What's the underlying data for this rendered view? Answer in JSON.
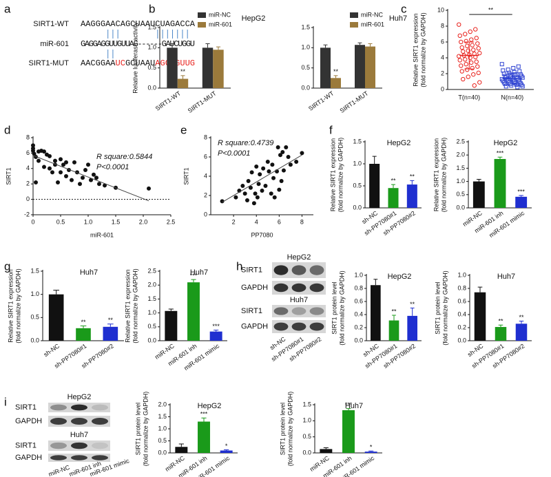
{
  "panel_labels": [
    "a",
    "b",
    "c",
    "d",
    "e",
    "f",
    "g",
    "h",
    "i"
  ],
  "sequence": {
    "rows": [
      {
        "label": "SIRT1-WT",
        "segments": [
          {
            "text": "AAGGGAACAGCUAAUCUAGACCA"
          }
        ]
      },
      {
        "label": "miR-601",
        "segments": [
          {
            "text": "GAGGAGGUUGUUAG------GAUCUGGU"
          }
        ]
      },
      {
        "label": "SIRT1-MUT",
        "segments": [
          {
            "text": "AACGGAA"
          },
          {
            "text": "UC",
            "color": "#e8211c"
          },
          {
            "text": "GCUAAU"
          },
          {
            "text": "AGCUGUUG",
            "color": "#e8211c"
          }
        ]
      }
    ]
  },
  "blots": [
    {
      "title": "HepG2",
      "rows": [
        "SIRT1",
        "GAPDH"
      ]
    },
    {
      "title": "Huh7",
      "rows": [
        "SIRT1",
        "GAPDH"
      ]
    },
    {
      "title": "HepG2",
      "rows": [
        "SIRT1",
        "GAPDH"
      ]
    },
    {
      "title": "Huh7",
      "rows": [
        "SIRT1",
        "GAPDH"
      ]
    }
  ],
  "chart_data": [
    {
      "type": "grouped-bar",
      "title": "HepG2",
      "ylabel": [
        "Relative luciferase activity"
      ],
      "categories": [
        "SIRT1-WT",
        "SIRT1-MUT"
      ],
      "series": [
        {
          "name": "miR-NC",
          "color": "#333333",
          "values": [
            1.0,
            1.0
          ],
          "errors": [
            0.1,
            0.1
          ],
          "sig": [
            null,
            null
          ]
        },
        {
          "name": "miR-601",
          "color": "#9b7a3b",
          "values": [
            0.23,
            0.95
          ],
          "errors": [
            0.08,
            0.07
          ],
          "sig": [
            "**",
            null
          ]
        }
      ],
      "ylim": [
        0,
        1.5
      ],
      "yticks": [
        {
          "value": 0,
          "label": "0.0"
        },
        0.5,
        {
          "value": 1,
          "label": "1.0"
        },
        1.5
      ]
    },
    {
      "type": "grouped-bar",
      "title": "Huh7",
      "categories": [
        "SIRT1-WT",
        "SIRT1-MUT"
      ],
      "series": [
        {
          "name": "miR-NC",
          "color": "#333333",
          "values": [
            1.0,
            1.07
          ],
          "errors": [
            0.07,
            0.05
          ],
          "sig": [
            null,
            null
          ]
        },
        {
          "name": "miR-601",
          "color": "#9b7a3b",
          "values": [
            0.25,
            1.03
          ],
          "errors": [
            0.06,
            0.07
          ],
          "sig": [
            "**",
            null
          ]
        }
      ],
      "ylim": [
        0,
        1.5
      ],
      "yticks": [
        {
          "value": 0,
          "label": "0.0"
        },
        0.5,
        {
          "value": 1,
          "label": "1.0"
        },
        1.5
      ]
    },
    {
      "type": "strip",
      "ylabel": [
        "Relative SIRT1 expression",
        "(fold normalize by GAPDH)"
      ],
      "categories": [
        "T(n=40)",
        "N(n=40)"
      ],
      "colors": [
        "#e8211c",
        "#2a3fd1"
      ],
      "markers": [
        "circle",
        "square"
      ],
      "values": [
        [
          8.2,
          7.6,
          7.3,
          7.0,
          6.8,
          6.5,
          6.3,
          6.1,
          6.0,
          5.8,
          5.6,
          5.5,
          5.3,
          5.2,
          5.0,
          4.9,
          4.8,
          4.6,
          4.5,
          4.4,
          4.3,
          4.2,
          4.1,
          4.0,
          3.8,
          3.7,
          3.5,
          3.4,
          3.2,
          3.0,
          2.9,
          2.7,
          2.5,
          2.3,
          2.1,
          1.9,
          1.6,
          1.3,
          0.9,
          0.5
        ],
        [
          3.2,
          2.9,
          2.7,
          2.5,
          2.4,
          2.3,
          2.2,
          2.1,
          2.0,
          1.9,
          1.9,
          1.8,
          1.7,
          1.7,
          1.6,
          1.6,
          1.5,
          1.5,
          1.4,
          1.4,
          1.3,
          1.3,
          1.2,
          1.2,
          1.1,
          1.1,
          1.0,
          1.0,
          0.9,
          0.9,
          0.8,
          0.8,
          0.7,
          0.7,
          0.6,
          0.6,
          0.5,
          0.4,
          0.4,
          0.3
        ]
      ],
      "mean": [
        4.3,
        1.4
      ],
      "sd": [
        1.7,
        0.7
      ],
      "sig": "**",
      "ylim": [
        0,
        10
      ],
      "yticks": [
        0,
        2,
        4,
        6,
        8,
        10
      ]
    },
    {
      "type": "scatter",
      "xlabel": "miR-601",
      "ylabel": [
        "SIRT1"
      ],
      "annotations": [
        "R square:0.5844",
        "P<0.0001"
      ],
      "x": [
        0,
        0,
        0,
        0.02,
        0.05,
        0.05,
        0.1,
        0.1,
        0.15,
        0.2,
        0.2,
        0.25,
        0.3,
        0.3,
        0.35,
        0.4,
        0.4,
        0.45,
        0.5,
        0.5,
        0.55,
        0.6,
        0.6,
        0.65,
        0.7,
        0.75,
        0.8,
        0.85,
        0.9,
        0.95,
        1.0,
        1.05,
        1.1,
        1.15,
        1.2,
        1.3,
        1.5,
        2.1
      ],
      "y": [
        7.0,
        6.6,
        6.3,
        5.9,
        5.5,
        2.2,
        6.2,
        5.0,
        6.3,
        6.2,
        4.2,
        5.8,
        4.0,
        5.6,
        3.5,
        5.0,
        4.5,
        2.2,
        5.2,
        3.5,
        4.5,
        3.0,
        4.8,
        3.8,
        2.5,
        4.8,
        3.5,
        2.0,
        2.8,
        3.8,
        4.5,
        2.5,
        3.2,
        2.8,
        2.0,
        1.8,
        1.5,
        1.4
      ],
      "fit": {
        "x": [
          0,
          2.1
        ],
        "y": [
          5.7,
          -0.2
        ]
      },
      "reference_y": 0,
      "xlim": [
        0,
        2.5
      ],
      "xticks": [
        0,
        0.5,
        {
          "value": 1,
          "label": "1.0"
        },
        1.5,
        {
          "value": 2,
          "label": "2.0"
        },
        2.5
      ],
      "ylim": [
        -2,
        8
      ],
      "yticks": [
        -2,
        0,
        2,
        4,
        6,
        8
      ]
    },
    {
      "type": "scatter",
      "xlabel": "PP7080",
      "ylabel": [
        "SIRT1"
      ],
      "annotations": [
        "R square:0.4739",
        "P<0.0001"
      ],
      "x": [
        1,
        2.2,
        2.5,
        2.8,
        3,
        3.2,
        3.3,
        3.5,
        3.6,
        3.8,
        3.9,
        4,
        4.1,
        4.2,
        4.3,
        4.5,
        4.6,
        4.8,
        5,
        5.1,
        5.3,
        5.4,
        5.5,
        5.6,
        5.8,
        5.9,
        6,
        6.1,
        6.2,
        6.3,
        6.4,
        6.6,
        6.8,
        7,
        7.5,
        8
      ],
      "y": [
        1.4,
        1.8,
        2.5,
        3,
        2.2,
        1.5,
        3.5,
        2.8,
        4.4,
        1.2,
        2.2,
        5,
        1.8,
        3.2,
        4.2,
        2.5,
        4.8,
        3,
        5.5,
        4.5,
        2.2,
        5.2,
        3.8,
        1.8,
        4.5,
        7,
        2.6,
        6.2,
        3.5,
        6.5,
        4.6,
        7,
        6,
        5.2,
        5.5,
        6.4
      ],
      "fit": {
        "x": [
          1,
          8
        ],
        "y": [
          1.3,
          6.2
        ]
      },
      "xlim": [
        0,
        9
      ],
      "xticks": [
        2,
        4,
        6,
        8
      ],
      "ylim": [
        0,
        8
      ],
      "yticks": [
        0,
        2,
        4,
        6,
        8
      ]
    },
    {
      "type": "bar",
      "title": "HepG2",
      "ylabel": [
        "Relative SIRT1 expression",
        "(fold normalize by GAPDH)"
      ],
      "categories": [
        "sh-NC",
        "sh-PP7080#1",
        "sh-PP7080#2"
      ],
      "colors": [
        "#111111",
        "#1a9a1a",
        "#1f2fd0"
      ],
      "values": [
        1.0,
        0.45,
        0.53
      ],
      "errors": [
        0.17,
        0.08,
        0.09
      ],
      "sig": [
        null,
        "**",
        "**"
      ],
      "ylim": [
        0,
        1.5
      ],
      "yticks": [
        {
          "value": 0,
          "label": "0.0"
        },
        0.5,
        {
          "value": 1,
          "label": "1.0"
        },
        1.5
      ]
    },
    {
      "type": "bar",
      "title": "HepG2",
      "ylabel": [
        "Relative SIRT1 expression",
        "(fold normalize by GAPDH)"
      ],
      "categories": [
        "miR-NC",
        "miR-601 inh",
        "miR-601 mimic"
      ],
      "colors": [
        "#111111",
        "#1a9a1a",
        "#1f2fd0"
      ],
      "values": [
        1.0,
        1.85,
        0.42
      ],
      "errors": [
        0.08,
        0.07,
        0.05
      ],
      "sig": [
        null,
        "***",
        "***"
      ],
      "ylim": [
        0,
        2.5
      ],
      "yticks": [
        {
          "value": 0,
          "label": "0.0"
        },
        0.5,
        {
          "value": 1,
          "label": "1.0"
        },
        1.5,
        {
          "value": 2,
          "label": "2.0"
        },
        2.5
      ]
    },
    {
      "type": "bar",
      "title": "Huh7",
      "ylabel": [
        "Relative SIRT1 expression",
        "(fold normalize by GAPDH)"
      ],
      "categories": [
        "sh-NC",
        "sh-PP7080#1",
        "sh-PP7080#2"
      ],
      "colors": [
        "#111111",
        "#1a9a1a",
        "#1f2fd0"
      ],
      "values": [
        1.0,
        0.27,
        0.3
      ],
      "errors": [
        0.09,
        0.05,
        0.06
      ],
      "sig": [
        null,
        "**",
        "**"
      ],
      "ylim": [
        0,
        1.5
      ],
      "yticks": [
        {
          "value": 0,
          "label": "0.0"
        },
        0.5,
        {
          "value": 1,
          "label": "1.0"
        },
        1.5
      ]
    },
    {
      "type": "bar",
      "title": "Huh7",
      "ylabel": [
        "Relative SIRT1 expression",
        "(fold normalize by GAPDH)"
      ],
      "categories": [
        "miR-NC",
        "miR-601 inh",
        "miR-601 mimic"
      ],
      "colors": [
        "#111111",
        "#1a9a1a",
        "#1f2fd0"
      ],
      "values": [
        1.07,
        2.1,
        0.33
      ],
      "errors": [
        0.07,
        0.1,
        0.05
      ],
      "sig": [
        null,
        "***",
        "***"
      ],
      "ylim": [
        0,
        2.5
      ],
      "yticks": [
        {
          "value": 0,
          "label": "0.0"
        },
        0.5,
        {
          "value": 1,
          "label": "1.0"
        },
        1.5,
        {
          "value": 2,
          "label": "2.0"
        },
        2.5
      ]
    },
    {
      "type": "bar",
      "title": "HepG2",
      "ylabel": [
        "SIRT1 protein level",
        "(fold normalize by GAPDH)"
      ],
      "categories": [
        "sh-NC",
        "sh-PP7080#1",
        "sh-PP7080#2"
      ],
      "colors": [
        "#111111",
        "#1a9a1a",
        "#1f2fd0"
      ],
      "values": [
        0.85,
        0.31,
        0.38
      ],
      "errors": [
        0.09,
        0.08,
        0.12
      ],
      "sig": [
        null,
        "**",
        "**"
      ],
      "ylim": [
        0,
        1.0
      ],
      "yticks": [
        {
          "value": 0,
          "label": "0.0"
        },
        0.2,
        0.4,
        0.6,
        0.8,
        {
          "value": 1,
          "label": "1.0"
        }
      ]
    },
    {
      "type": "bar",
      "title": "Huh7",
      "ylabel": [
        "SIRT1 protein level",
        "(fold normalize by GAPDH)"
      ],
      "categories": [
        "sh-NC",
        "sh-PP7080#1",
        "sh-PP7080#2"
      ],
      "colors": [
        "#111111",
        "#1a9a1a",
        "#1f2fd0"
      ],
      "values": [
        0.74,
        0.21,
        0.26
      ],
      "errors": [
        0.08,
        0.03,
        0.04
      ],
      "sig": [
        null,
        "**",
        "**"
      ],
      "ylim": [
        0,
        1.0
      ],
      "yticks": [
        {
          "value": 0,
          "label": "0.0"
        },
        0.2,
        0.4,
        0.6,
        0.8,
        {
          "value": 1,
          "label": "1.0"
        }
      ]
    },
    {
      "type": "bar",
      "title": "HepG2",
      "ylabel": [
        "SIRT1 protein level",
        "(fold normalize by GAPDH)"
      ],
      "categories": [
        "miR-NC",
        "miR-601 inh",
        "miR-601 mimic"
      ],
      "colors": [
        "#111111",
        "#1a9a1a",
        "#1f2fd0"
      ],
      "values": [
        0.25,
        1.3,
        0.1
      ],
      "errors": [
        0.12,
        0.15,
        0.03
      ],
      "sig": [
        null,
        "***",
        "*"
      ],
      "ylim": [
        0,
        2.0
      ],
      "yticks": [
        {
          "value": 0,
          "label": "0.0"
        },
        0.5,
        {
          "value": 1,
          "label": "1.0"
        },
        1.5,
        {
          "value": 2,
          "label": "2.0"
        }
      ]
    },
    {
      "type": "bar",
      "title": "Huh7",
      "ylabel": [
        "SIRT1 protein level",
        "(fold normalize by GAPDH)"
      ],
      "categories": [
        "miR-NC",
        "miR-601 inh",
        "miR-601 mimic"
      ],
      "colors": [
        "#111111",
        "#1a9a1a",
        "#1f2fd0"
      ],
      "values": [
        0.12,
        1.33,
        0.04
      ],
      "errors": [
        0.04,
        0.05,
        0.02
      ],
      "sig": [
        null,
        "***",
        "*"
      ],
      "ylim": [
        0,
        1.5
      ],
      "yticks": [
        {
          "value": 0,
          "label": "0.0"
        },
        0.5,
        {
          "value": 1,
          "label": "1.0"
        },
        1.5
      ]
    }
  ]
}
